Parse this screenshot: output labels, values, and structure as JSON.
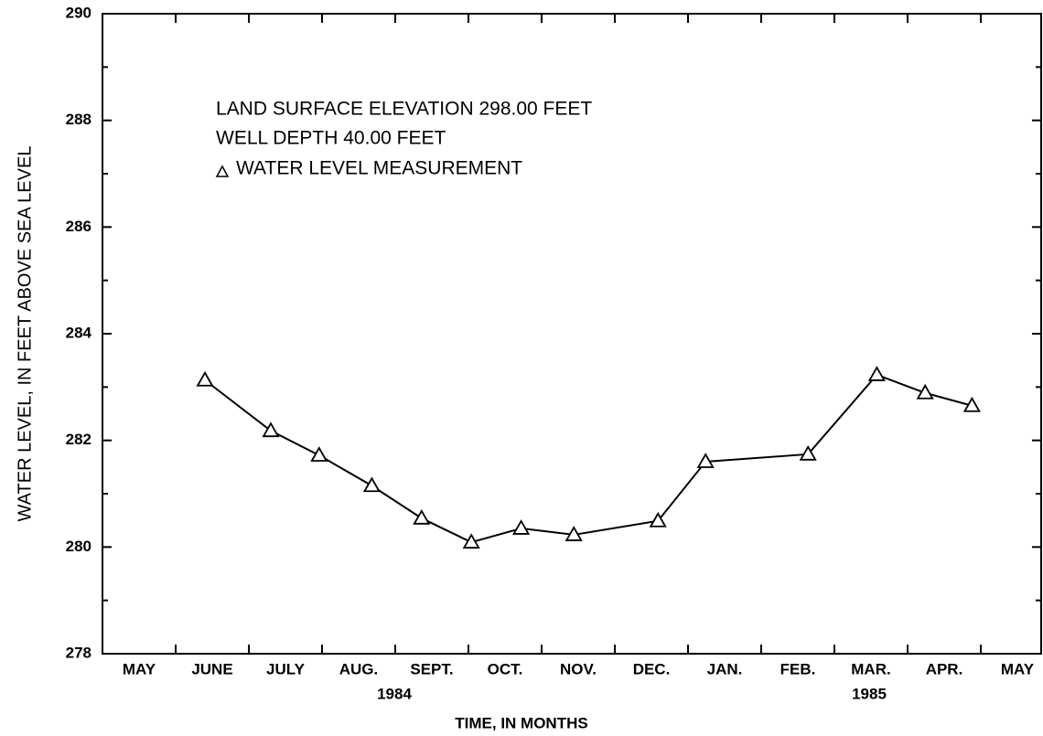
{
  "chart_data": {
    "type": "line",
    "y_label": "WATER LEVEL, IN FEET ABOVE SEA LEVEL",
    "x_label": "TIME, IN MONTHS",
    "annotations": [
      "LAND SURFACE ELEVATION 298.00 FEET",
      "WELL DEPTH 40.00 FEET"
    ],
    "categories": [
      "MAY",
      "JUNE",
      "JULY",
      "AUG.",
      "SEPT.",
      "OCT.",
      "NOV.",
      "DEC.",
      "JAN.",
      "FEB.",
      "MAR.",
      "APR.",
      "MAY"
    ],
    "years": [
      "1984",
      "1985"
    ],
    "series": [
      {
        "name": "WATER LEVEL MEASUREMENT",
        "color": "#000000",
        "marker": "triangle",
        "x": [
          1.4,
          2.3,
          2.96,
          3.68,
          4.36,
          5.04,
          5.72,
          6.44,
          7.59,
          8.24,
          9.64,
          10.58,
          11.24,
          11.88
        ],
        "values": [
          283.13,
          282.18,
          281.72,
          281.15,
          280.54,
          280.09,
          280.35,
          280.23,
          280.49,
          281.6,
          281.74,
          283.23,
          282.89,
          282.65
        ]
      }
    ],
    "xlim": [
      0,
      12.825
    ],
    "xticks": [
      1,
      2,
      3,
      4,
      5,
      6,
      7,
      8,
      9,
      10,
      11,
      12
    ],
    "ylim": [
      278,
      290
    ],
    "yticks": [
      278,
      280,
      282,
      284,
      286,
      288,
      290
    ],
    "yminor_ticks": [
      279,
      281,
      283,
      285,
      287,
      289
    ]
  }
}
